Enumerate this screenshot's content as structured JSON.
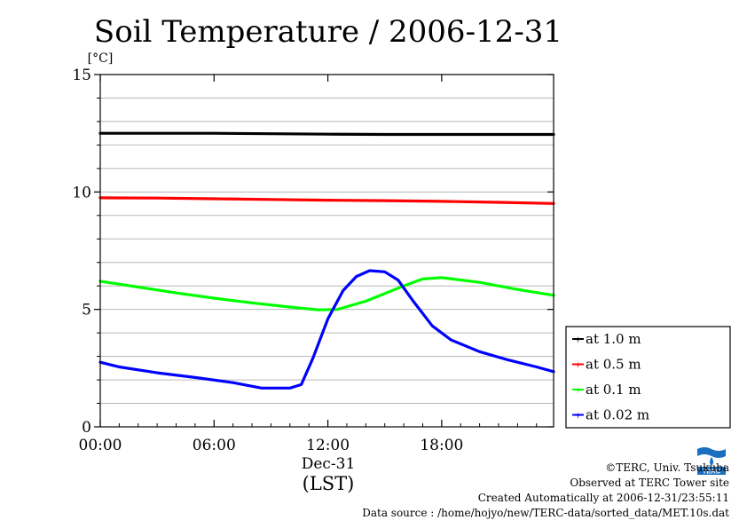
{
  "chart_data": {
    "type": "line",
    "title": "Soil Temperature / 2006-12-31",
    "unit_label": "[°C]",
    "xlabel_date": "Dec-31",
    "xlabel": "(LST)",
    "x_ticks": [
      "00:00",
      "06:00",
      "12:00",
      "18:00"
    ],
    "y_ticks": [
      "0",
      "5",
      "10",
      "15"
    ],
    "xlim": [
      0,
      23.9
    ],
    "ylim": [
      0,
      15
    ],
    "grid": true,
    "legend_position": "right",
    "x_unit": "hours",
    "series": [
      {
        "name": "at 1.0 m",
        "color": "#000000",
        "x": [
          0,
          3,
          6,
          9,
          12,
          15,
          18,
          21,
          23.9
        ],
        "y": [
          12.5,
          12.5,
          12.5,
          12.48,
          12.46,
          12.45,
          12.45,
          12.45,
          12.45
        ]
      },
      {
        "name": "at 0.5 m",
        "color": "#ff0000",
        "x": [
          0,
          3,
          6,
          9,
          12,
          15,
          18,
          21,
          23.9
        ],
        "y": [
          9.75,
          9.74,
          9.71,
          9.68,
          9.65,
          9.63,
          9.6,
          9.56,
          9.51
        ]
      },
      {
        "name": "at 0.1 m",
        "color": "#00ff00",
        "x": [
          0,
          2,
          4,
          6,
          8,
          10,
          11.5,
          12.5,
          14,
          16,
          17,
          18,
          20,
          22,
          23.9
        ],
        "y": [
          6.2,
          5.95,
          5.7,
          5.48,
          5.28,
          5.1,
          4.98,
          5.0,
          5.35,
          6.0,
          6.3,
          6.35,
          6.15,
          5.85,
          5.6
        ]
      },
      {
        "name": "at 0.02 m",
        "color": "#0000ff",
        "x": [
          0,
          1,
          3,
          5,
          7,
          8.5,
          10,
          10.6,
          11.2,
          12,
          12.8,
          13.5,
          14.2,
          15,
          15.7,
          16.5,
          17.5,
          18.5,
          20,
          21.5,
          23,
          23.9
        ],
        "y": [
          2.75,
          2.55,
          2.3,
          2.1,
          1.88,
          1.65,
          1.65,
          1.8,
          2.9,
          4.6,
          5.8,
          6.4,
          6.65,
          6.6,
          6.25,
          5.35,
          4.3,
          3.7,
          3.2,
          2.85,
          2.55,
          2.35
        ]
      }
    ]
  },
  "credits": {
    "copyright": "©TERC, Univ. Tsukuba",
    "observed": "Observed at TERC Tower site",
    "created": "Created Automatically at 2006-12-31/23:55:11",
    "source": "Data source : /home/hojyo/new/TERC-data/sorted_data/MET.10s.dat"
  },
  "logo": {
    "text": "TERC",
    "color": "#1a6fbf"
  }
}
